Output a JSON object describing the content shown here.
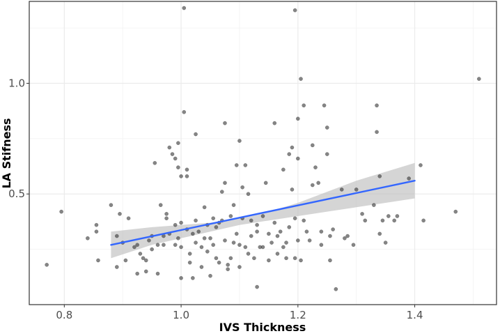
{
  "chart_data": {
    "type": "scatter",
    "title": "",
    "xlabel": "IVS Thickness",
    "ylabel": "LA Stifness",
    "xlim": [
      0.74,
      1.54
    ],
    "ylim": [
      0.0,
      1.37
    ],
    "x_ticks": [
      0.8,
      1.0,
      1.2,
      1.4
    ],
    "x_tick_labels": [
      "0.8",
      "1.0",
      "1.2",
      "1.4"
    ],
    "y_ticks": [
      0.5,
      1.0
    ],
    "y_tick_labels": [
      "0.5",
      "1.0"
    ],
    "grid": true,
    "point_color": "#333333",
    "trend_line_color": "#3366ff",
    "confidence_band_color": "#bfbfbf",
    "trend_line": {
      "x": [
        0.88,
        1.4
      ],
      "y": [
        0.27,
        0.56
      ]
    },
    "confidence_band": {
      "x": [
        0.88,
        0.95,
        1.0,
        1.05,
        1.1,
        1.15,
        1.2,
        1.25,
        1.3,
        1.35,
        1.4
      ],
      "lower": [
        0.21,
        0.27,
        0.3,
        0.33,
        0.36,
        0.38,
        0.4,
        0.42,
        0.44,
        0.46,
        0.48
      ],
      "upper": [
        0.33,
        0.35,
        0.36,
        0.37,
        0.39,
        0.42,
        0.46,
        0.51,
        0.56,
        0.6,
        0.64
      ]
    },
    "points": [
      [
        0.77,
        0.18
      ],
      [
        0.795,
        0.42
      ],
      [
        0.84,
        0.3
      ],
      [
        0.855,
        0.36
      ],
      [
        0.855,
        0.33
      ],
      [
        0.858,
        0.2
      ],
      [
        0.88,
        0.45
      ],
      [
        0.89,
        0.17
      ],
      [
        0.89,
        0.31
      ],
      [
        0.895,
        0.41
      ],
      [
        0.9,
        0.28
      ],
      [
        0.905,
        0.2
      ],
      [
        0.91,
        0.39
      ],
      [
        0.92,
        0.26
      ],
      [
        0.925,
        0.27
      ],
      [
        0.925,
        0.14
      ],
      [
        0.93,
        0.23
      ],
      [
        0.935,
        0.21
      ],
      [
        0.94,
        0.2
      ],
      [
        0.94,
        0.15
      ],
      [
        0.945,
        0.29
      ],
      [
        0.95,
        0.25
      ],
      [
        0.95,
        0.31
      ],
      [
        0.955,
        0.64
      ],
      [
        0.96,
        0.14
      ],
      [
        0.96,
        0.27
      ],
      [
        0.965,
        0.45
      ],
      [
        0.97,
        0.31
      ],
      [
        0.97,
        0.27
      ],
      [
        0.975,
        0.39
      ],
      [
        0.975,
        0.41
      ],
      [
        0.98,
        0.71
      ],
      [
        0.98,
        0.32
      ],
      [
        0.985,
        0.68
      ],
      [
        0.99,
        0.66
      ],
      [
        0.99,
        0.36
      ],
      [
        0.99,
        0.27
      ],
      [
        0.995,
        0.73
      ],
      [
        0.995,
        0.62
      ],
      [
        0.995,
        0.3
      ],
      [
        1.0,
        0.58
      ],
      [
        1.0,
        0.37
      ],
      [
        1.0,
        0.26
      ],
      [
        1.0,
        0.12
      ],
      [
        1.005,
        1.34
      ],
      [
        1.005,
        0.87
      ],
      [
        1.01,
        0.61
      ],
      [
        1.01,
        0.58
      ],
      [
        1.01,
        0.34
      ],
      [
        1.015,
        0.23
      ],
      [
        1.015,
        0.19
      ],
      [
        1.02,
        0.32
      ],
      [
        1.02,
        0.12
      ],
      [
        1.025,
        0.77
      ],
      [
        1.025,
        0.38
      ],
      [
        1.025,
        0.28
      ],
      [
        1.03,
        0.33
      ],
      [
        1.035,
        0.26
      ],
      [
        1.035,
        0.17
      ],
      [
        1.04,
        0.44
      ],
      [
        1.04,
        0.3
      ],
      [
        1.045,
        0.36
      ],
      [
        1.045,
        0.24
      ],
      [
        1.05,
        0.3
      ],
      [
        1.05,
        0.13
      ],
      [
        1.055,
        0.39
      ],
      [
        1.055,
        0.27
      ],
      [
        1.06,
        0.35
      ],
      [
        1.06,
        0.21
      ],
      [
        1.065,
        0.37
      ],
      [
        1.065,
        0.19
      ],
      [
        1.07,
        0.51
      ],
      [
        1.07,
        0.38
      ],
      [
        1.075,
        0.82
      ],
      [
        1.075,
        0.55
      ],
      [
        1.075,
        0.29
      ],
      [
        1.08,
        0.16
      ],
      [
        1.08,
        0.18
      ],
      [
        1.085,
        0.4
      ],
      [
        1.085,
        0.21
      ],
      [
        1.09,
        0.45
      ],
      [
        1.09,
        0.28
      ],
      [
        1.095,
        0.63
      ],
      [
        1.095,
        0.32
      ],
      [
        1.1,
        0.74
      ],
      [
        1.1,
        0.27
      ],
      [
        1.1,
        0.17
      ],
      [
        1.105,
        0.53
      ],
      [
        1.105,
        0.39
      ],
      [
        1.11,
        0.63
      ],
      [
        1.11,
        0.26
      ],
      [
        1.115,
        0.5
      ],
      [
        1.115,
        0.23
      ],
      [
        1.12,
        0.38
      ],
      [
        1.12,
        0.31
      ],
      [
        1.125,
        0.21
      ],
      [
        1.13,
        0.36
      ],
      [
        1.13,
        0.33
      ],
      [
        1.13,
        0.08
      ],
      [
        1.135,
        0.26
      ],
      [
        1.14,
        0.4
      ],
      [
        1.14,
        0.26
      ],
      [
        1.145,
        0.55
      ],
      [
        1.15,
        0.32
      ],
      [
        1.15,
        0.2
      ],
      [
        1.155,
        0.28
      ],
      [
        1.16,
        0.82
      ],
      [
        1.16,
        0.37
      ],
      [
        1.165,
        0.31
      ],
      [
        1.165,
        0.23
      ],
      [
        1.17,
        0.33
      ],
      [
        1.175,
        0.61
      ],
      [
        1.175,
        0.26
      ],
      [
        1.18,
        0.28
      ],
      [
        1.18,
        0.21
      ],
      [
        1.185,
        0.68
      ],
      [
        1.185,
        0.35
      ],
      [
        1.19,
        0.71
      ],
      [
        1.19,
        0.52
      ],
      [
        1.195,
        0.39
      ],
      [
        1.195,
        0.21
      ],
      [
        1.2,
        0.84
      ],
      [
        1.2,
        0.66
      ],
      [
        1.2,
        0.29
      ],
      [
        1.205,
        1.02
      ],
      [
        1.205,
        0.2
      ],
      [
        1.21,
        0.9
      ],
      [
        1.21,
        0.38
      ],
      [
        1.215,
        0.33
      ],
      [
        1.22,
        0.29
      ],
      [
        1.225,
        0.72
      ],
      [
        1.225,
        0.54
      ],
      [
        1.23,
        0.62
      ],
      [
        1.235,
        0.55
      ],
      [
        1.24,
        0.33
      ],
      [
        1.24,
        0.27
      ],
      [
        1.245,
        0.9
      ],
      [
        1.25,
        0.8
      ],
      [
        1.25,
        0.68
      ],
      [
        1.255,
        0.31
      ],
      [
        1.255,
        0.2
      ],
      [
        1.26,
        0.34
      ],
      [
        1.265,
        0.07
      ],
      [
        1.275,
        0.52
      ],
      [
        1.28,
        0.3
      ],
      [
        1.285,
        0.31
      ],
      [
        1.295,
        0.27
      ],
      [
        1.3,
        0.52
      ],
      [
        1.31,
        0.41
      ],
      [
        1.315,
        0.38
      ],
      [
        1.33,
        0.45
      ],
      [
        1.335,
        0.9
      ],
      [
        1.335,
        0.78
      ],
      [
        1.34,
        0.58
      ],
      [
        1.34,
        0.32
      ],
      [
        1.345,
        0.38
      ],
      [
        1.35,
        0.28
      ],
      [
        1.355,
        0.4
      ],
      [
        1.365,
        0.38
      ],
      [
        1.37,
        0.4
      ],
      [
        1.39,
        0.57
      ],
      [
        1.41,
        0.63
      ],
      [
        1.415,
        0.38
      ],
      [
        1.47,
        0.42
      ],
      [
        1.51,
        1.02
      ],
      [
        1.195,
        1.33
      ]
    ]
  }
}
